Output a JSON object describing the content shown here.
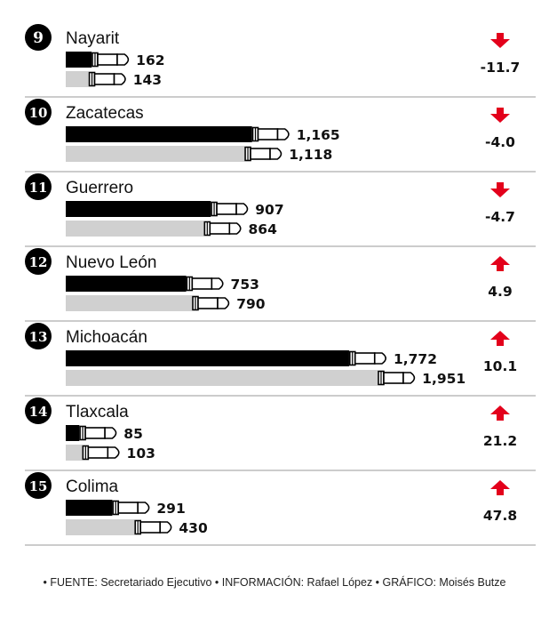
{
  "chart_data": {
    "type": "bar",
    "colors": {
      "current": "#000000",
      "previous": "#d0d0d0",
      "up": "#e3001b",
      "down": "#e3001b"
    },
    "rows": [
      {
        "rank": "9",
        "state": "Nayarit",
        "current": 162,
        "current_label": "162",
        "previous": 143,
        "previous_label": "143",
        "change": -11.7,
        "change_label": "-11.7",
        "direction": "down"
      },
      {
        "rank": "10",
        "state": "Zacatecas",
        "current": 1165,
        "current_label": "1,165",
        "previous": 1118,
        "previous_label": "1,118",
        "change": -4.0,
        "change_label": "-4.0",
        "direction": "down"
      },
      {
        "rank": "11",
        "state": "Guerrero",
        "current": 907,
        "current_label": "907",
        "previous": 864,
        "previous_label": "864",
        "change": -4.7,
        "change_label": "-4.7",
        "direction": "down"
      },
      {
        "rank": "12",
        "state": "Nuevo León",
        "current": 753,
        "current_label": "753",
        "previous": 790,
        "previous_label": "790",
        "change": 4.9,
        "change_label": "4.9",
        "direction": "up"
      },
      {
        "rank": "13",
        "state": "Michoacán",
        "current": 1772,
        "current_label": "1,772",
        "previous": 1951,
        "previous_label": "1,951",
        "change": 10.1,
        "change_label": "10.1",
        "direction": "up"
      },
      {
        "rank": "14",
        "state": "Tlaxcala",
        "current": 85,
        "current_label": "85",
        "previous": 103,
        "previous_label": "103",
        "change": 21.2,
        "change_label": "21.2",
        "direction": "up"
      },
      {
        "rank": "15",
        "state": "Colima",
        "current": 291,
        "current_label": "291",
        "previous": 430,
        "previous_label": "430",
        "change": 47.8,
        "change_label": "47.8",
        "direction": "up"
      }
    ]
  },
  "footer": "• FUENTE: Secretariado Ejecutivo • INFORMACIÓN: Rafael López • GRÁFICO: Moisés Butze"
}
